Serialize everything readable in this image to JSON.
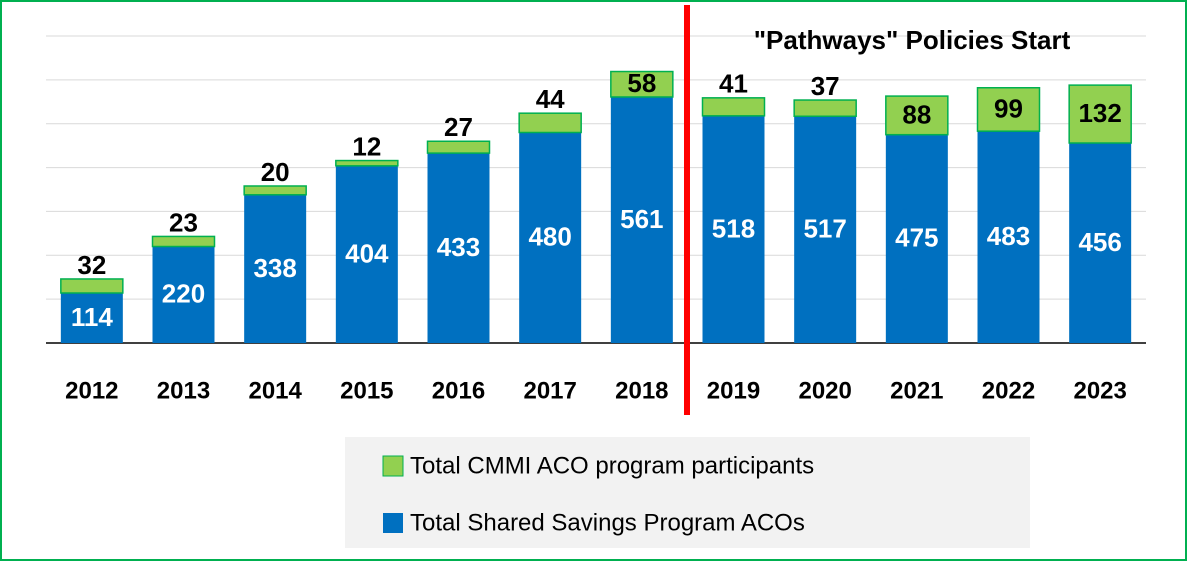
{
  "chart_data": {
    "type": "stacked_bar",
    "categories": [
      "2012",
      "2013",
      "2014",
      "2015",
      "2016",
      "2017",
      "2018",
      "2019",
      "2020",
      "2021",
      "2022",
      "2023"
    ],
    "series": [
      {
        "name": "Total Shared Savings Program ACOs",
        "color": "#0070c0",
        "values": [
          114,
          220,
          338,
          404,
          433,
          480,
          561,
          518,
          517,
          475,
          483,
          456
        ]
      },
      {
        "name": "Total CMMI ACO program participants",
        "color": "#92d050",
        "values": [
          32,
          23,
          20,
          12,
          27,
          44,
          58,
          41,
          37,
          88,
          99,
          132
        ]
      }
    ],
    "annotation": "\"Pathways\" Policies Start",
    "ylim": [
      0,
      700
    ],
    "yticks": [
      0,
      100,
      200,
      300,
      400,
      500,
      600,
      700
    ],
    "grid": true
  }
}
